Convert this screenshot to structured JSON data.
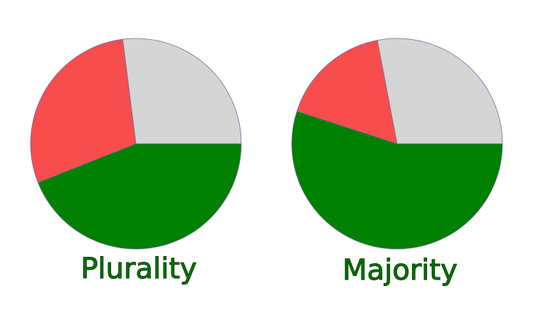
{
  "chart_data": [
    {
      "type": "pie",
      "title": "Plurality",
      "slices": [
        {
          "value": 44,
          "color": "#008000"
        },
        {
          "value": 29,
          "color": "#f84d4d"
        },
        {
          "value": 27,
          "color": "#d5d5d5"
        }
      ]
    },
    {
      "type": "pie",
      "title": "Majority",
      "slices": [
        {
          "value": 55,
          "color": "#008000"
        },
        {
          "value": 17,
          "color": "#f84d4d"
        },
        {
          "value": 28,
          "color": "#d5d5d5"
        }
      ]
    }
  ]
}
